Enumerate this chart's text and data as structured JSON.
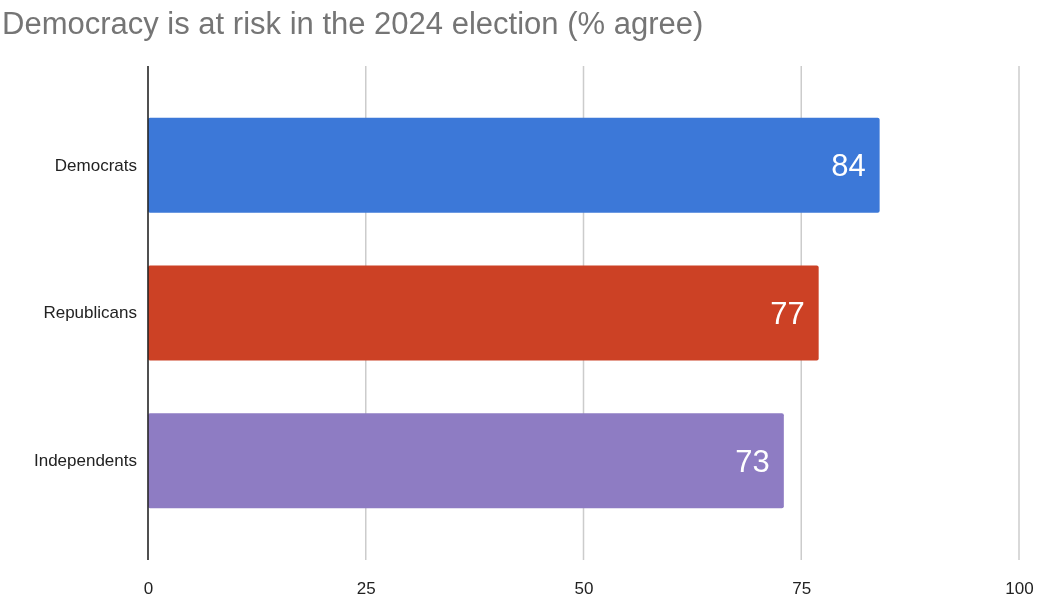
{
  "chart_data": {
    "type": "bar",
    "orientation": "horizontal",
    "title": "Democracy is at risk in the 2024 election (% agree)",
    "categories": [
      "Democrats",
      "Republicans",
      "Independents"
    ],
    "values": [
      84,
      77,
      73
    ],
    "colors": [
      "#3c78d8",
      "#cc4125",
      "#8e7cc3"
    ],
    "xlim": [
      0,
      100
    ],
    "xticks": [
      0,
      25,
      50,
      75,
      100
    ],
    "grid": "x",
    "data_labels": true
  }
}
